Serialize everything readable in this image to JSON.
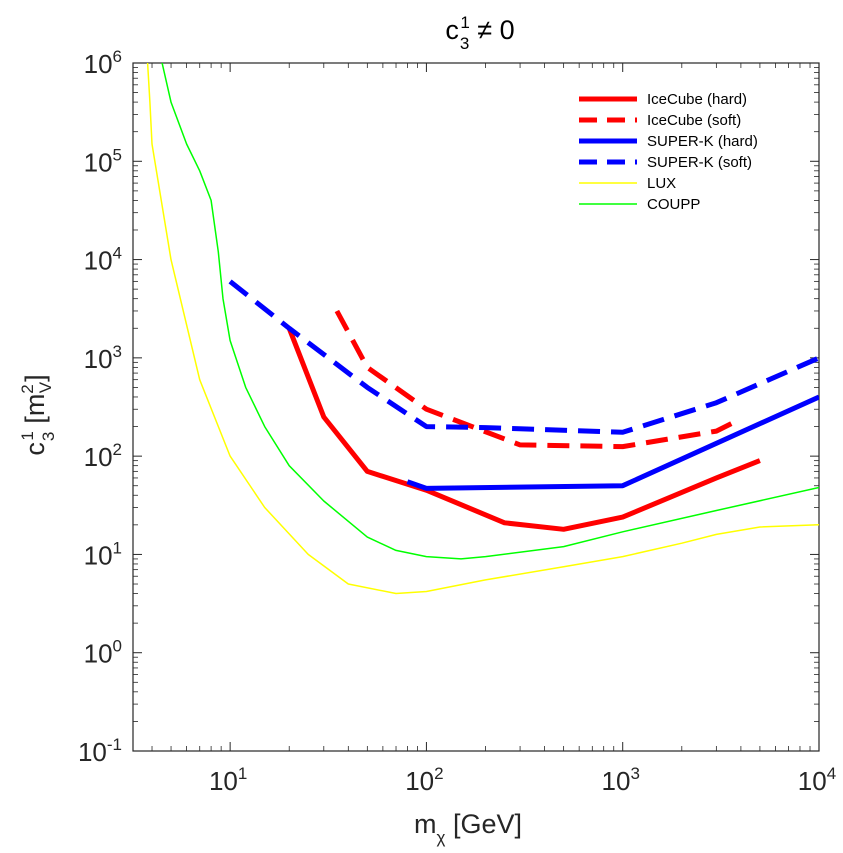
{
  "chart_data": {
    "type": "line",
    "title": {
      "base": "c",
      "sub": "3",
      "sup": "1",
      "rest": " ≠ 0"
    },
    "xlabel": {
      "base": "m",
      "sub": "χ",
      "rest": " [GeV]"
    },
    "ylabel": {
      "base": "c",
      "sub": "3",
      "sup": "1",
      "unit_open": " [m",
      "unit_sup": "2",
      "unit_sub": "V",
      "unit_close": "]"
    },
    "xscale": "log",
    "yscale": "log",
    "xlim": [
      3.2,
      10000
    ],
    "ylim": [
      0.1,
      1000000
    ],
    "x_ticks": [
      {
        "value": 10,
        "base": "10",
        "exp": "1"
      },
      {
        "value": 100,
        "base": "10",
        "exp": "2"
      },
      {
        "value": 1000,
        "base": "10",
        "exp": "3"
      },
      {
        "value": 10000,
        "base": "10",
        "exp": "4"
      }
    ],
    "y_ticks": [
      {
        "value": 0.1,
        "base": "10",
        "exp": "-1"
      },
      {
        "value": 1,
        "base": "10",
        "exp": "0"
      },
      {
        "value": 10,
        "base": "10",
        "exp": "1"
      },
      {
        "value": 100,
        "base": "10",
        "exp": "2"
      },
      {
        "value": 1000,
        "base": "10",
        "exp": "3"
      },
      {
        "value": 10000,
        "base": "10",
        "exp": "4"
      },
      {
        "value": 100000,
        "base": "10",
        "exp": "5"
      },
      {
        "value": 1000000,
        "base": "10",
        "exp": "6"
      }
    ],
    "legend_position": "top-right",
    "series": [
      {
        "name": "IceCube (hard)",
        "color": "#ff0000",
        "dash": "solid",
        "weight": "thick",
        "x": [
          20,
          30,
          50,
          100,
          250,
          500,
          1000,
          3000,
          5000
        ],
        "y": [
          2000,
          250,
          70,
          45,
          21,
          18,
          24,
          60,
          90
        ]
      },
      {
        "name": "IceCube (soft)",
        "color": "#ff0000",
        "dash": "dashed",
        "weight": "thick",
        "x": [
          35,
          50,
          100,
          300,
          1000,
          3000,
          4000
        ],
        "y": [
          3000,
          800,
          300,
          130,
          125,
          180,
          240
        ]
      },
      {
        "name": "SUPER-K (hard)",
        "color": "#0000ff",
        "dash": "solid",
        "weight": "thick",
        "x": [
          80,
          100,
          1000,
          10000
        ],
        "y": [
          55,
          47,
          50,
          400
        ]
      },
      {
        "name": "SUPER-K (soft)",
        "color": "#0000ff",
        "dash": "dashed",
        "weight": "thick",
        "x": [
          10,
          20,
          50,
          100,
          200,
          1000,
          3000,
          10000
        ],
        "y": [
          6000,
          2000,
          500,
          200,
          195,
          175,
          350,
          1000
        ]
      },
      {
        "name": "LUX",
        "color": "#ffff00",
        "dash": "solid",
        "weight": "thin",
        "x": [
          3.8,
          3.9,
          4,
          5,
          7,
          10,
          15,
          25,
          40,
          70,
          100,
          200,
          500,
          1000,
          2000,
          3000,
          5000,
          10000
        ],
        "y": [
          1000000,
          400000,
          150000,
          10000,
          600,
          100,
          30,
          10,
          5,
          4,
          4.2,
          5.5,
          7.5,
          9.5,
          13,
          16,
          19,
          20
        ]
      },
      {
        "name": "COUPP",
        "color": "#00ff00",
        "dash": "solid",
        "weight": "thin",
        "x": [
          4.5,
          5,
          6,
          7,
          8,
          8.7,
          9.2,
          10,
          12,
          15,
          20,
          30,
          50,
          70,
          100,
          150,
          200,
          500,
          1000,
          3000,
          10000
        ],
        "y": [
          1000000,
          400000,
          150000,
          80000,
          40000,
          12000,
          4000,
          1500,
          500,
          200,
          80,
          35,
          15,
          11,
          9.5,
          9,
          9.5,
          12,
          17,
          28,
          48
        ]
      }
    ]
  }
}
